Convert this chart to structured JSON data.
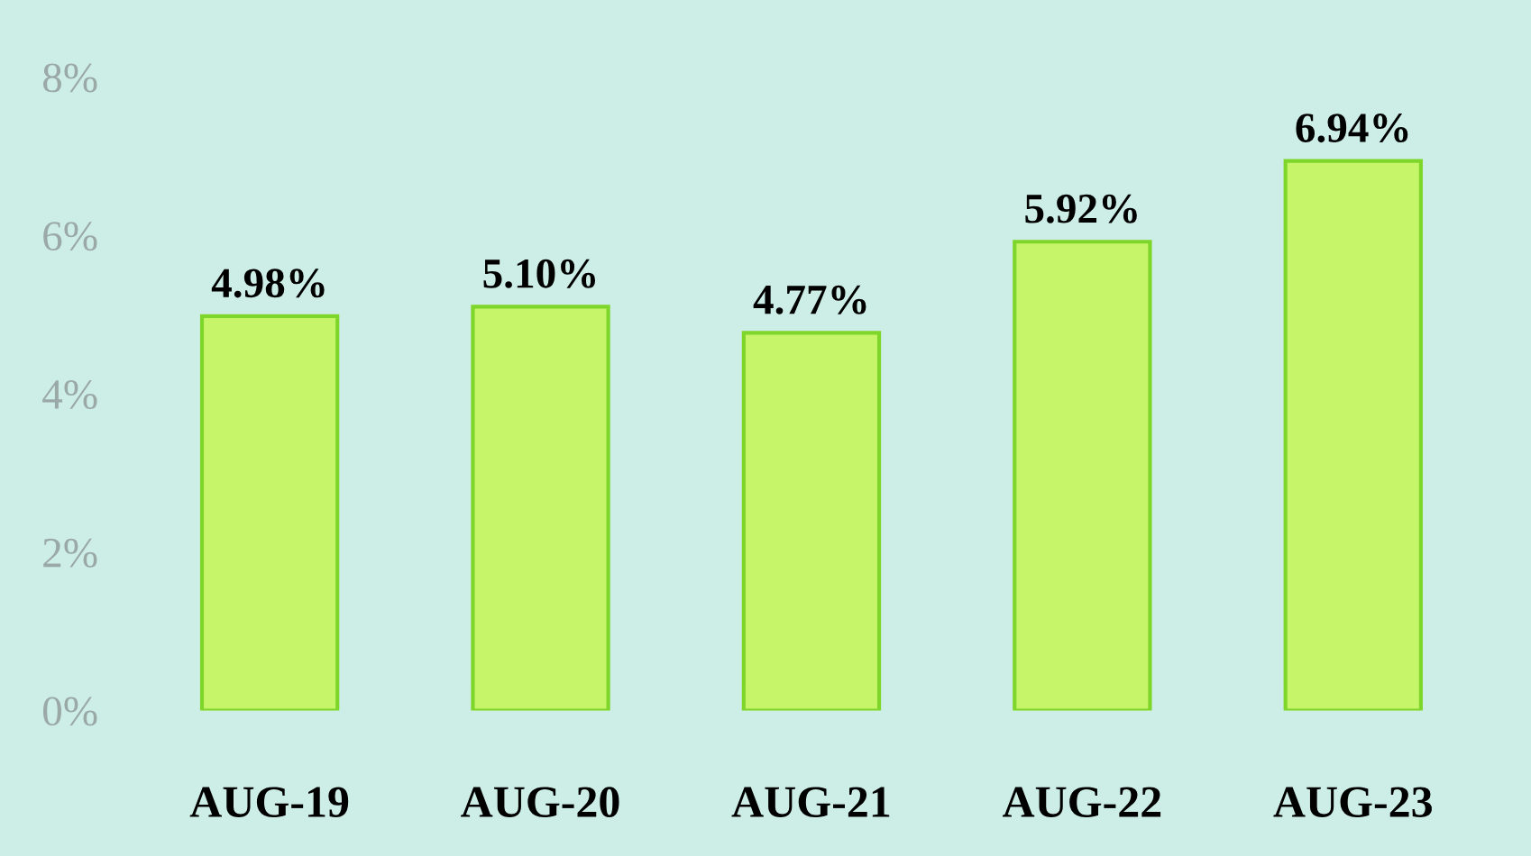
{
  "chart_data": {
    "type": "bar",
    "categories": [
      "AUG-19",
      "AUG-20",
      "AUG-21",
      "AUG-22",
      "AUG-23"
    ],
    "series": [
      {
        "color": "#c6f56a",
        "values": [
          4.98,
          5.1,
          4.77,
          5.92,
          6.94
        ],
        "value_labels": [
          "4.98%",
          "5.10%",
          "4.77%",
          "5.92%",
          "6.94%"
        ]
      }
    ],
    "ylim": [
      0,
      8
    ],
    "yticks": [
      {
        "value": 0,
        "label": "0%"
      },
      {
        "value": 2,
        "label": "2%"
      },
      {
        "value": 4,
        "label": "4%"
      },
      {
        "value": 6,
        "label": "6%"
      },
      {
        "value": 8,
        "label": "8%"
      }
    ],
    "grid": false
  }
}
